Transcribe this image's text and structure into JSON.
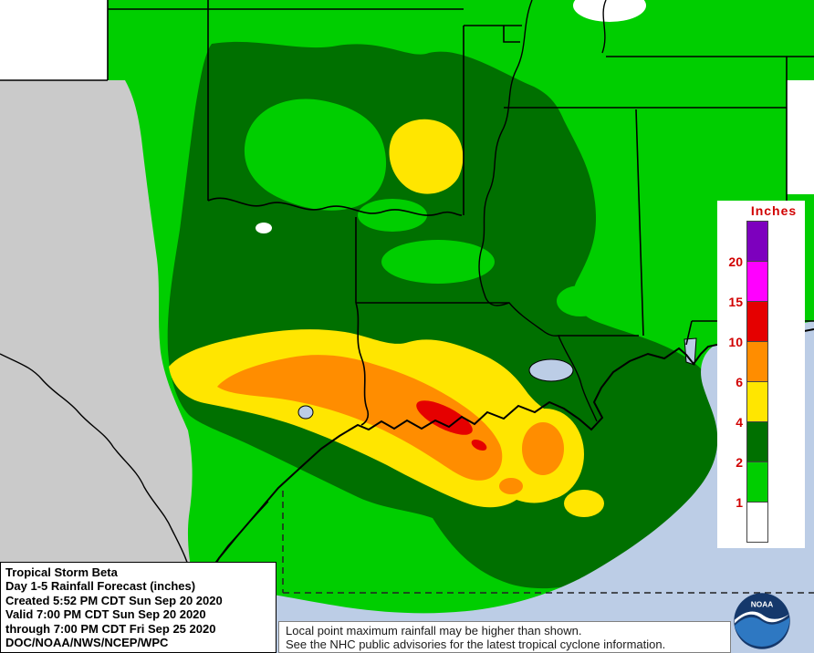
{
  "palette": {
    "green": "#00CE00",
    "dark_green": "#007000",
    "yellow": "#FFE600",
    "orange": "#FF8D00",
    "red": "#E50000",
    "magenta": "#FF00FF",
    "purple": "#7D00BE",
    "white": "#FFFFFF",
    "no_data_gray": "#CACACA",
    "water_blue": "#BCCDE6",
    "label_red": "#D10000"
  },
  "legend": {
    "title": "Inches",
    "boxes": [
      "purple",
      "magenta",
      "red",
      "orange",
      "yellow",
      "dark_green",
      "green",
      "white"
    ],
    "labels": [
      "20",
      "15",
      "10",
      "6",
      "4",
      "2",
      "1"
    ]
  },
  "title_box": {
    "lines": [
      "Tropical Storm Beta",
      "Day 1-5 Rainfall Forecast (inches)",
      "Created 5:52 PM CDT Sun Sep 20 2020",
      "Valid 7:00 PM CDT Sun Sep 20 2020",
      "through 7:00 PM CDT Fri Sep 25 2020",
      "DOC/NOAA/NWS/NCEP/WPC"
    ]
  },
  "disclaimer": {
    "lines": [
      "Local point maximum rainfall may be higher than shown.",
      "See the NHC public advisories for the latest tropical cyclone information."
    ]
  },
  "noaa_logo": {
    "label": "NOAA"
  },
  "map_data": {
    "type": "rainfall_contour_map",
    "units": "inches",
    "region": "South-central United States and northern Gulf of Mexico (Texas, Oklahoma, Arkansas, Louisiana, Mississippi)",
    "bands": [
      {
        "range": "<1",
        "color_key": "white"
      },
      {
        "range": "1-2",
        "color_key": "green"
      },
      {
        "range": "2-4",
        "color_key": "dark_green"
      },
      {
        "range": "4-6",
        "color_key": "yellow"
      },
      {
        "range": "6-10",
        "color_key": "orange"
      },
      {
        "range": "10-15",
        "color_key": "red"
      },
      {
        "range": "15-20",
        "color_key": "magenta"
      },
      {
        "range": ">20",
        "color_key": "purple"
      }
    ],
    "max_band_shown": "10-15 inches along the upper Texas / southwest Louisiana coast"
  }
}
